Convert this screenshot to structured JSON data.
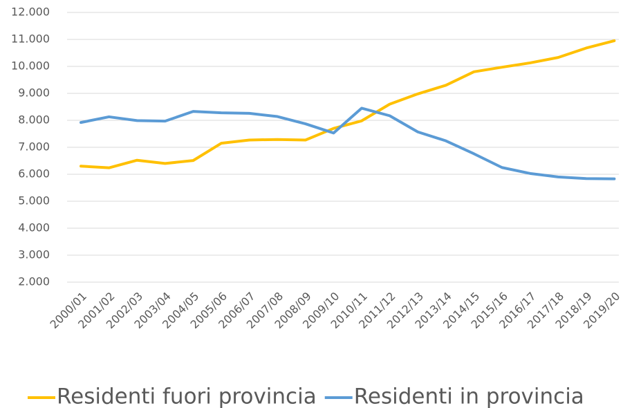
{
  "chart_data": {
    "type": "line",
    "categories": [
      "2000/01",
      "2001/02",
      "2002/03",
      "2003/04",
      "2004/05",
      "2005/06",
      "2006/07",
      "2007/08",
      "2008/09",
      "2009/10",
      "2010/11",
      "2011/12",
      "2012/13",
      "2013/14",
      "2014/15",
      "2015/16",
      "2016/17",
      "2017/18",
      "2018/19",
      "2019/20"
    ],
    "series": [
      {
        "name": "Residenti fuori provincia",
        "color": "#FFC000",
        "values": [
          6300,
          6240,
          6520,
          6400,
          6510,
          7150,
          7270,
          7290,
          7270,
          7700,
          7980,
          8600,
          8980,
          9300,
          9800,
          9970,
          10130,
          10330,
          10680,
          10950
        ]
      },
      {
        "name": "Residenti in provincia",
        "color": "#5B9BD5",
        "values": [
          7920,
          8130,
          7990,
          7970,
          8330,
          8280,
          8260,
          8140,
          7870,
          7530,
          8450,
          8170,
          7570,
          7240,
          6760,
          6250,
          6030,
          5900,
          5840,
          5830
        ]
      }
    ],
    "ylim": [
      2000,
      12000
    ],
    "yticks": [
      {
        "value": 2000,
        "label": "2.000"
      },
      {
        "value": 3000,
        "label": "3.000"
      },
      {
        "value": 4000,
        "label": "4.000"
      },
      {
        "value": 5000,
        "label": "5.000"
      },
      {
        "value": 6000,
        "label": "6.000"
      },
      {
        "value": 7000,
        "label": "7.000"
      },
      {
        "value": 8000,
        "label": "8.000"
      },
      {
        "value": 9000,
        "label": "9.000"
      },
      {
        "value": 10000,
        "label": "10.000"
      },
      {
        "value": 11000,
        "label": "11.000"
      },
      {
        "value": 12000,
        "label": "12.000"
      }
    ],
    "grid": true,
    "legend": "bottom"
  }
}
